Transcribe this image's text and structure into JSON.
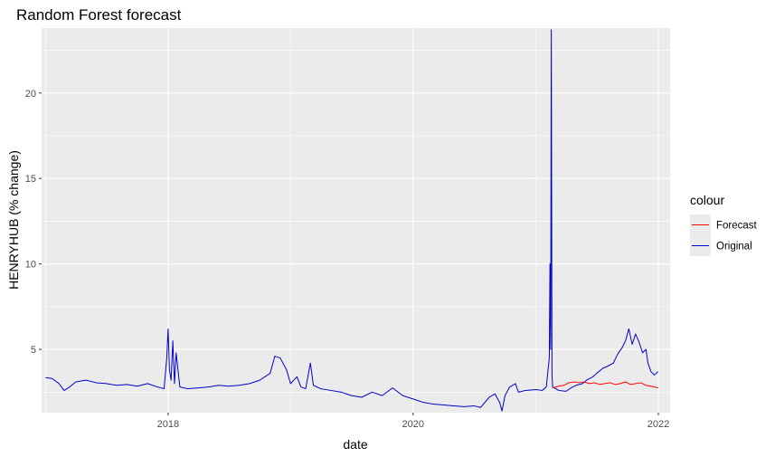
{
  "chart_data": {
    "type": "line",
    "title": "Random Forest forecast",
    "xlabel": "date",
    "ylabel": "HENRYHUB (% change)",
    "xlim": [
      "2016-12-20",
      "2022-02-05"
    ],
    "ylim": [
      1.3,
      23.8
    ],
    "x_ticks": [
      "2018-01-01",
      "2020-01-01",
      "2022-01-01"
    ],
    "x_tick_labels": [
      "2018",
      "2020",
      "2022"
    ],
    "y_ticks": [
      5,
      10,
      15,
      20
    ],
    "y_tick_labels": [
      "5",
      "10",
      "15",
      "20"
    ],
    "grid": true,
    "legend": {
      "title": "colour",
      "position": "right"
    },
    "series": [
      {
        "name": "Forecast",
        "color": "#ff0000",
        "points": [
          [
            "2021-02-20",
            2.75
          ],
          [
            "2021-03-10",
            2.85
          ],
          [
            "2021-03-25",
            2.9
          ],
          [
            "2021-04-10",
            3.05
          ],
          [
            "2021-04-25",
            3.1
          ],
          [
            "2021-05-10",
            3.05
          ],
          [
            "2021-05-25",
            3.1
          ],
          [
            "2021-06-10",
            3.0
          ],
          [
            "2021-06-25",
            3.05
          ],
          [
            "2021-07-10",
            2.95
          ],
          [
            "2021-07-25",
            3.0
          ],
          [
            "2021-08-10",
            3.05
          ],
          [
            "2021-08-25",
            2.95
          ],
          [
            "2021-09-10",
            3.0
          ],
          [
            "2021-09-25",
            3.1
          ],
          [
            "2021-10-10",
            2.95
          ],
          [
            "2021-10-25",
            3.0
          ],
          [
            "2021-11-10",
            3.05
          ],
          [
            "2021-11-25",
            2.9
          ],
          [
            "2021-12-10",
            2.85
          ],
          [
            "2021-12-31",
            2.75
          ]
        ]
      },
      {
        "name": "Original",
        "color": "#0000cd",
        "points": [
          [
            "2017-01-01",
            3.35
          ],
          [
            "2017-01-20",
            3.3
          ],
          [
            "2017-02-10",
            3.0
          ],
          [
            "2017-02-25",
            2.6
          ],
          [
            "2017-03-10",
            2.75
          ],
          [
            "2017-04-01",
            3.1
          ],
          [
            "2017-05-01",
            3.2
          ],
          [
            "2017-06-01",
            3.05
          ],
          [
            "2017-07-01",
            3.0
          ],
          [
            "2017-08-01",
            2.9
          ],
          [
            "2017-09-01",
            2.95
          ],
          [
            "2017-10-01",
            2.85
          ],
          [
            "2017-11-01",
            3.0
          ],
          [
            "2017-12-01",
            2.8
          ],
          [
            "2017-12-20",
            2.7
          ],
          [
            "2017-12-28",
            4.5
          ],
          [
            "2018-01-01",
            6.2
          ],
          [
            "2018-01-05",
            3.8
          ],
          [
            "2018-01-10",
            3.2
          ],
          [
            "2018-01-15",
            5.5
          ],
          [
            "2018-01-20",
            3.0
          ],
          [
            "2018-01-25",
            4.8
          ],
          [
            "2018-02-05",
            2.8
          ],
          [
            "2018-03-01",
            2.7
          ],
          [
            "2018-04-01",
            2.75
          ],
          [
            "2018-05-01",
            2.8
          ],
          [
            "2018-06-01",
            2.9
          ],
          [
            "2018-07-01",
            2.85
          ],
          [
            "2018-08-01",
            2.9
          ],
          [
            "2018-09-01",
            3.0
          ],
          [
            "2018-10-01",
            3.2
          ],
          [
            "2018-11-01",
            3.6
          ],
          [
            "2018-11-15",
            4.6
          ],
          [
            "2018-12-01",
            4.5
          ],
          [
            "2018-12-20",
            3.8
          ],
          [
            "2019-01-01",
            3.0
          ],
          [
            "2019-01-20",
            3.4
          ],
          [
            "2019-02-01",
            2.8
          ],
          [
            "2019-02-15",
            2.7
          ],
          [
            "2019-03-01",
            4.2
          ],
          [
            "2019-03-10",
            2.9
          ],
          [
            "2019-04-01",
            2.7
          ],
          [
            "2019-05-01",
            2.6
          ],
          [
            "2019-06-01",
            2.5
          ],
          [
            "2019-07-01",
            2.3
          ],
          [
            "2019-08-01",
            2.2
          ],
          [
            "2019-09-01",
            2.5
          ],
          [
            "2019-10-01",
            2.3
          ],
          [
            "2019-11-01",
            2.75
          ],
          [
            "2019-12-01",
            2.3
          ],
          [
            "2020-01-01",
            2.1
          ],
          [
            "2020-02-01",
            1.9
          ],
          [
            "2020-03-01",
            1.8
          ],
          [
            "2020-04-01",
            1.75
          ],
          [
            "2020-05-01",
            1.7
          ],
          [
            "2020-06-01",
            1.65
          ],
          [
            "2020-07-01",
            1.7
          ],
          [
            "2020-07-20",
            1.6
          ],
          [
            "2020-08-15",
            2.2
          ],
          [
            "2020-09-01",
            2.4
          ],
          [
            "2020-09-15",
            1.9
          ],
          [
            "2020-09-22",
            1.4
          ],
          [
            "2020-10-01",
            2.3
          ],
          [
            "2020-10-15",
            2.8
          ],
          [
            "2020-11-01",
            3.0
          ],
          [
            "2020-11-10",
            2.5
          ],
          [
            "2020-12-01",
            2.6
          ],
          [
            "2021-01-01",
            2.65
          ],
          [
            "2021-01-20",
            2.6
          ],
          [
            "2021-02-01",
            2.8
          ],
          [
            "2021-02-10",
            4.5
          ],
          [
            "2021-02-12",
            10.0
          ],
          [
            "2021-02-14",
            5.0
          ],
          [
            "2021-02-16",
            23.7
          ],
          [
            "2021-02-18",
            3.5
          ],
          [
            "2021-02-20",
            2.8
          ],
          [
            "2021-03-10",
            2.6
          ],
          [
            "2021-04-01",
            2.55
          ],
          [
            "2021-04-20",
            2.8
          ],
          [
            "2021-05-01",
            2.9
          ],
          [
            "2021-05-20",
            3.0
          ],
          [
            "2021-06-01",
            3.2
          ],
          [
            "2021-06-20",
            3.4
          ],
          [
            "2021-07-01",
            3.6
          ],
          [
            "2021-07-20",
            3.9
          ],
          [
            "2021-08-01",
            4.0
          ],
          [
            "2021-08-20",
            4.2
          ],
          [
            "2021-09-01",
            4.7
          ],
          [
            "2021-09-15",
            5.1
          ],
          [
            "2021-09-25",
            5.5
          ],
          [
            "2021-10-05",
            6.2
          ],
          [
            "2021-10-15",
            5.3
          ],
          [
            "2021-10-25",
            5.9
          ],
          [
            "2021-11-05",
            5.4
          ],
          [
            "2021-11-15",
            4.8
          ],
          [
            "2021-11-25",
            5.0
          ],
          [
            "2021-12-01",
            4.2
          ],
          [
            "2021-12-10",
            3.7
          ],
          [
            "2021-12-20",
            3.5
          ],
          [
            "2021-12-31",
            3.7
          ]
        ]
      }
    ]
  }
}
